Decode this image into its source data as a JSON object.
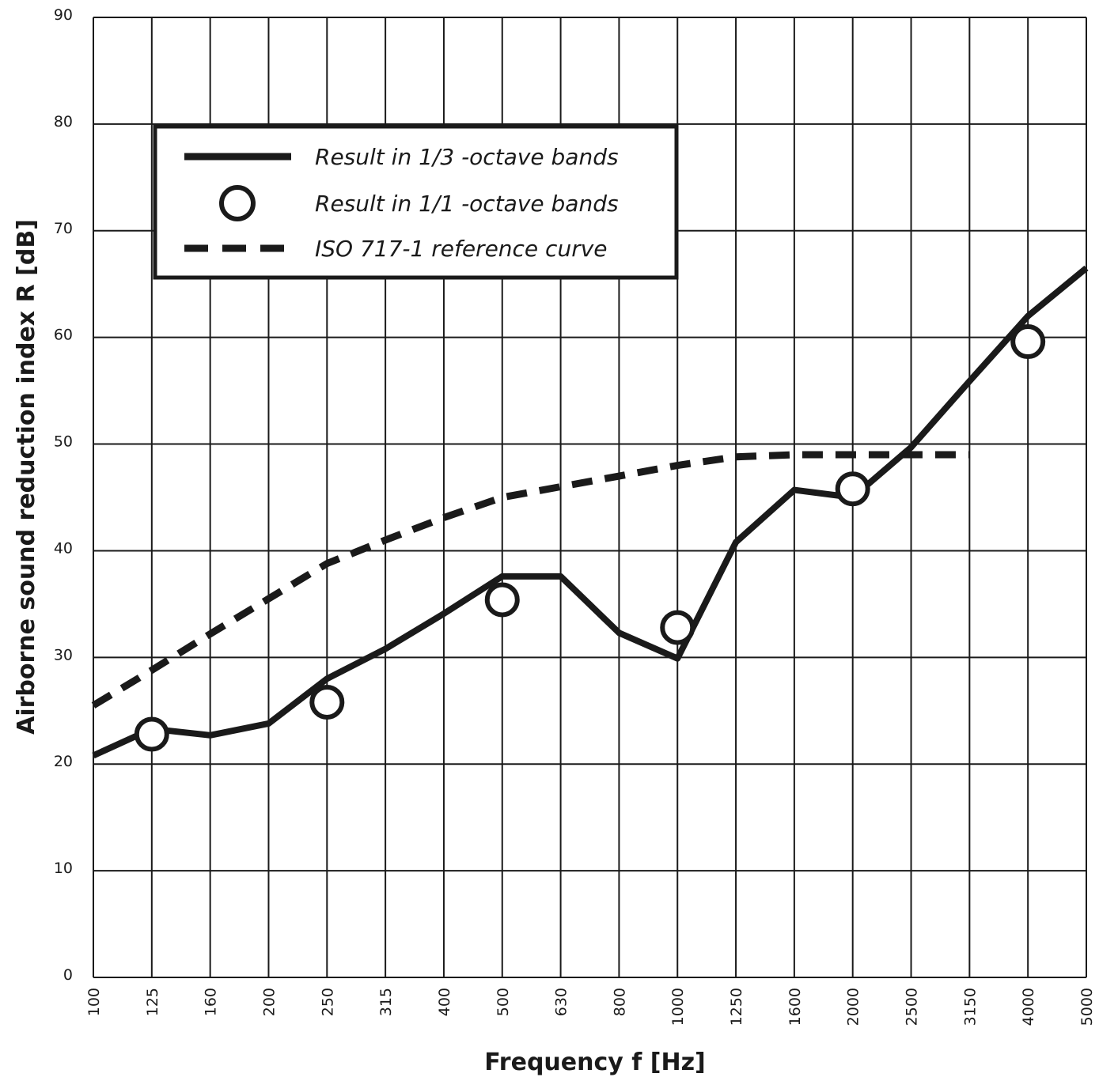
{
  "chart_data": {
    "type": "line",
    "xlabel": "Frequency f [Hz]",
    "ylabel": "Airborne sound reduction index R [dB]",
    "ylim": [
      0,
      90
    ],
    "yticks": [
      0,
      10,
      20,
      30,
      40,
      50,
      60,
      70,
      80,
      90
    ],
    "x_scale": "log (1/3-octave bands)",
    "categories": [
      "100",
      "125",
      "160",
      "200",
      "250",
      "315",
      "400",
      "500",
      "630",
      "800",
      "1000",
      "1250",
      "1600",
      "2000",
      "2500",
      "3150",
      "4000",
      "5000"
    ],
    "grid": true,
    "legend_position": "top-left",
    "series": [
      {
        "name": "Result in 1/3 -octave bands",
        "style": "solid-line",
        "x": [
          "100",
          "125",
          "160",
          "200",
          "250",
          "315",
          "400",
          "500",
          "630",
          "800",
          "1000",
          "1250",
          "1600",
          "2000",
          "2500",
          "3150",
          "4000",
          "5000"
        ],
        "values": [
          20.8,
          23.3,
          22.7,
          23.8,
          28.0,
          30.8,
          34.1,
          37.6,
          37.6,
          32.3,
          29.9,
          40.8,
          45.7,
          45.0,
          49.7,
          55.9,
          62.0,
          66.5
        ]
      },
      {
        "name": "Result in 1/1 -octave bands",
        "style": "open-circles",
        "x": [
          "125",
          "250",
          "500",
          "1000",
          "2000",
          "4000"
        ],
        "values": [
          22.8,
          25.8,
          35.4,
          32.8,
          45.8,
          59.6
        ]
      },
      {
        "name": "ISO 717-1 reference curve",
        "style": "dashed-line",
        "x": [
          "100",
          "125",
          "160",
          "200",
          "250",
          "315",
          "400",
          "500",
          "630",
          "800",
          "1000",
          "1250",
          "1600",
          "2000",
          "2500",
          "3150"
        ],
        "values": [
          25.5,
          28.8,
          32.2,
          35.5,
          38.8,
          41.0,
          43.1,
          45.0,
          46.0,
          47.0,
          48.0,
          48.8,
          49.0,
          49.0,
          49.0,
          49.0
        ]
      }
    ]
  }
}
